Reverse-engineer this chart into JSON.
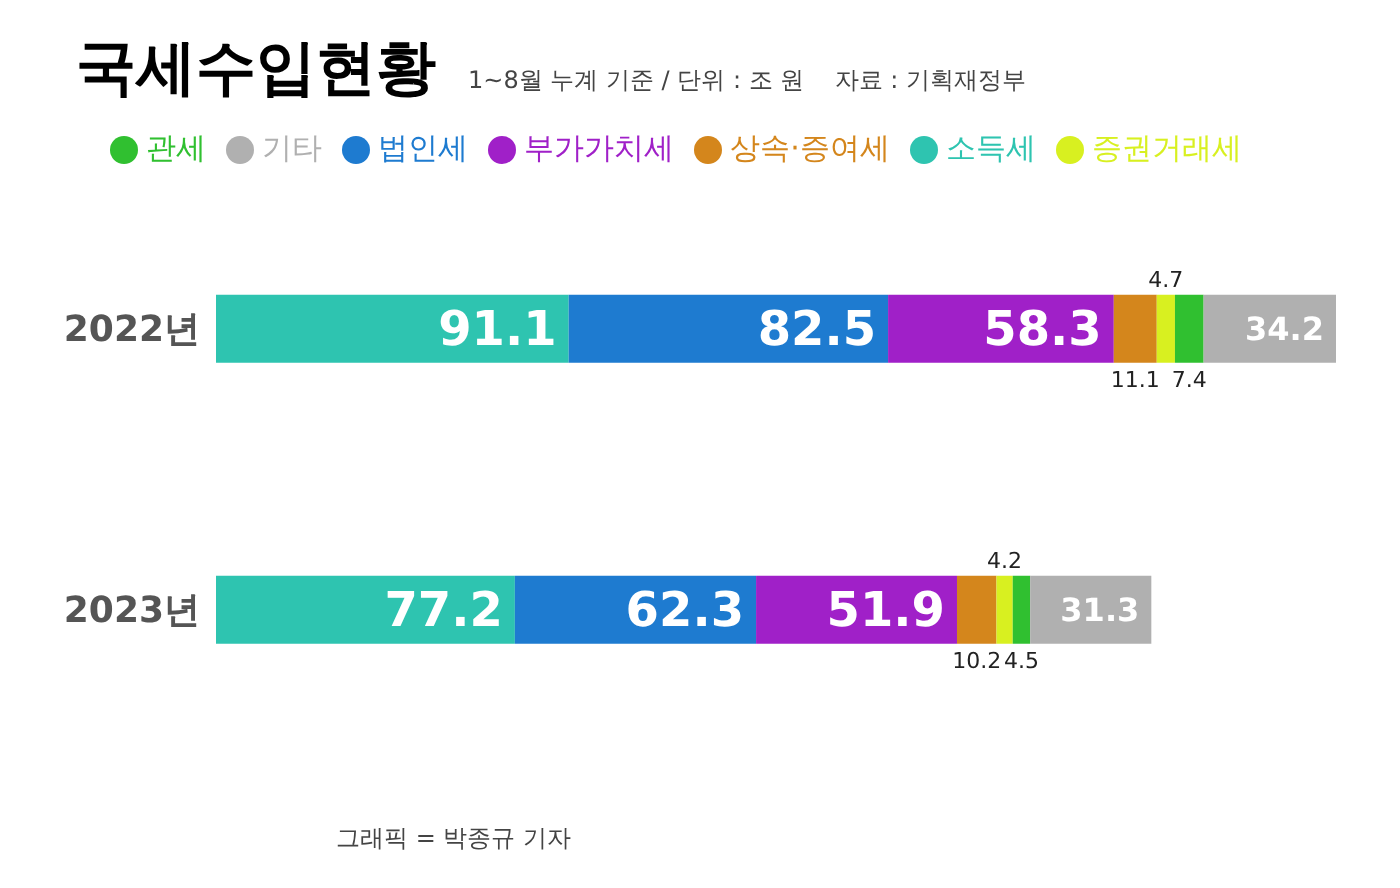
{
  "chart_data": {
    "type": "bar",
    "orientation": "horizontal",
    "stacked": true,
    "title": "국세수입현황",
    "subtitle": "1~8월 누계 기준 / 단위 : 조 원    자료 : 기획재정부",
    "categories": [
      "2022년",
      "2023년"
    ],
    "series": [
      {
        "name": "소득세",
        "color": "#2ec4b0",
        "values": [
          91.1,
          77.2
        ]
      },
      {
        "name": "법인세",
        "color": "#1e7bd0",
        "values": [
          82.5,
          62.3
        ]
      },
      {
        "name": "부가가치세",
        "color": "#a020c8",
        "values": [
          58.3,
          51.9
        ]
      },
      {
        "name": "상속·증여세",
        "color": "#d4861c",
        "values": [
          11.1,
          10.2
        ]
      },
      {
        "name": "증권거래세",
        "color": "#d8f020",
        "values": [
          4.7,
          4.2
        ]
      },
      {
        "name": "관세",
        "color": "#30c030",
        "values": [
          7.4,
          4.5
        ]
      },
      {
        "name": "기타",
        "color": "#b0b0b0",
        "values": [
          34.2,
          31.3
        ]
      }
    ],
    "data_labels": true,
    "legend": "top",
    "annotations": [
      "그래픽 = 박종규 기자"
    ]
  }
}
